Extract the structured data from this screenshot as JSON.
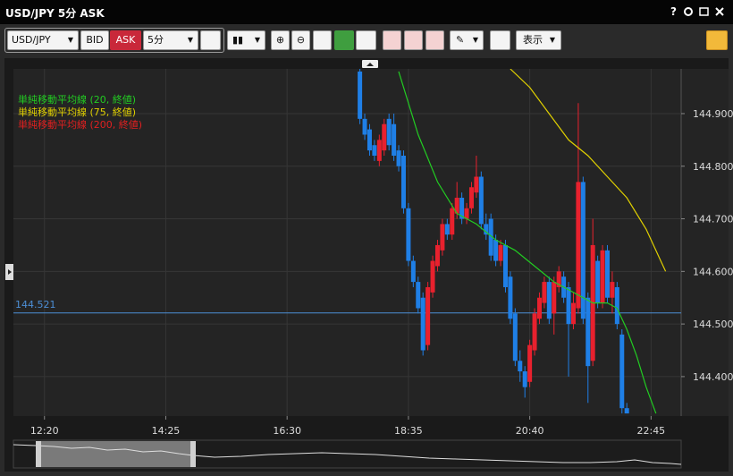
{
  "window": {
    "title": "USD/JPY 5分 ASK",
    "help": "?"
  },
  "toolbar": {
    "symbol": "USD/JPY",
    "bid": "BID",
    "ask": "ASK",
    "interval": "5分",
    "display": "表示"
  },
  "chart_data": {
    "type": "candlestick",
    "x": [
      "17:45",
      "17:50",
      "17:55",
      "18:00",
      "18:05",
      "18:10",
      "18:15",
      "18:20",
      "18:25",
      "18:30",
      "18:35",
      "18:40",
      "18:45",
      "18:50",
      "18:55",
      "19:00",
      "19:05",
      "19:10",
      "19:15",
      "19:20",
      "19:25",
      "19:30",
      "19:35",
      "19:40",
      "19:45",
      "19:50",
      "19:55",
      "20:00",
      "20:05",
      "20:10",
      "20:15",
      "20:20",
      "20:25",
      "20:30",
      "20:35",
      "20:40",
      "20:45",
      "20:50",
      "20:55",
      "21:00",
      "21:05",
      "21:10",
      "21:15",
      "21:20",
      "21:25",
      "21:30",
      "21:35",
      "21:40",
      "21:45",
      "21:50",
      "21:55",
      "22:00",
      "22:05",
      "22:10",
      "22:15",
      "22:20"
    ],
    "open": [
      144.98,
      144.89,
      144.87,
      144.84,
      144.81,
      144.83,
      144.89,
      144.88,
      144.83,
      144.82,
      144.72,
      144.62,
      144.58,
      144.55,
      144.46,
      144.56,
      144.61,
      144.64,
      144.69,
      144.67,
      144.71,
      144.74,
      144.7,
      144.72,
      144.75,
      144.78,
      144.69,
      144.7,
      144.66,
      144.62,
      144.65,
      144.59,
      144.52,
      144.43,
      144.41,
      144.39,
      144.45,
      144.51,
      144.54,
      144.58,
      144.52,
      144.57,
      144.59,
      144.57,
      144.5,
      144.53,
      144.77,
      144.55,
      144.43,
      144.62,
      144.54,
      144.64,
      144.55,
      144.57,
      144.48,
      144.34
    ],
    "high": [
      144.99,
      144.9,
      144.88,
      144.85,
      144.86,
      144.89,
      144.9,
      144.9,
      144.84,
      144.83,
      144.73,
      144.63,
      144.59,
      144.56,
      144.58,
      144.63,
      144.66,
      144.7,
      144.7,
      144.73,
      144.77,
      144.75,
      144.73,
      144.77,
      144.82,
      144.79,
      144.71,
      144.71,
      144.67,
      144.66,
      144.66,
      144.6,
      144.53,
      144.45,
      144.42,
      144.47,
      144.53,
      144.56,
      144.59,
      144.59,
      144.59,
      144.61,
      144.6,
      144.58,
      144.56,
      144.92,
      144.78,
      144.56,
      144.7,
      144.63,
      144.65,
      144.65,
      144.6,
      144.58,
      144.49,
      144.35
    ],
    "low": [
      144.88,
      144.85,
      144.82,
      144.81,
      144.8,
      144.82,
      144.83,
      144.81,
      144.79,
      144.71,
      144.61,
      144.57,
      144.52,
      144.44,
      144.45,
      144.55,
      144.6,
      144.63,
      144.66,
      144.66,
      144.7,
      144.69,
      144.69,
      144.71,
      144.74,
      144.68,
      144.66,
      144.62,
      144.61,
      144.61,
      144.56,
      144.5,
      144.42,
      144.39,
      144.36,
      144.38,
      144.44,
      144.5,
      144.53,
      144.5,
      144.48,
      144.56,
      144.54,
      144.4,
      144.49,
      144.52,
      144.5,
      144.35,
      144.42,
      144.53,
      144.53,
      144.54,
      144.52,
      144.49,
      144.33,
      144.33
    ],
    "close": [
      144.89,
      144.86,
      144.83,
      144.82,
      144.85,
      144.88,
      144.84,
      144.82,
      144.8,
      144.72,
      144.62,
      144.58,
      144.53,
      144.45,
      144.57,
      144.62,
      144.65,
      144.69,
      144.67,
      144.72,
      144.74,
      144.7,
      144.72,
      144.76,
      144.78,
      144.69,
      144.67,
      144.63,
      144.62,
      144.65,
      144.57,
      144.51,
      144.43,
      144.41,
      144.38,
      144.46,
      144.52,
      144.55,
      144.58,
      144.51,
      144.58,
      144.6,
      144.55,
      144.5,
      144.54,
      144.77,
      144.51,
      144.42,
      144.65,
      144.54,
      144.64,
      144.55,
      144.58,
      144.5,
      144.34,
      144.33
    ],
    "up_color": "#e8212e",
    "down_color": "#1f7fe6",
    "series": [
      {
        "name": "単純移動平均線 (20, 終値)",
        "color": "#22cc22",
        "x": [
          "18:25",
          "18:45",
          "19:05",
          "19:25",
          "19:45",
          "20:05",
          "20:25",
          "20:45",
          "21:05",
          "21:25",
          "21:45",
          "22:00",
          "22:10",
          "22:20",
          "22:30",
          "22:40",
          "22:50"
        ],
        "values": [
          144.98,
          144.86,
          144.77,
          144.71,
          144.69,
          144.66,
          144.64,
          144.61,
          144.58,
          144.56,
          144.54,
          144.54,
          144.53,
          144.49,
          144.44,
          144.38,
          144.33
        ]
      },
      {
        "name": "単純移動平均線 (75, 終値)",
        "color": "#e0d000",
        "x": [
          "20:20",
          "20:40",
          "21:00",
          "21:20",
          "21:40",
          "22:00",
          "22:20",
          "22:40",
          "22:55",
          "23:00"
        ],
        "values": [
          144.985,
          144.95,
          144.9,
          144.85,
          144.82,
          144.78,
          144.74,
          144.68,
          144.62,
          144.6
        ]
      },
      {
        "name": "単純移動平均線 (200, 終値)",
        "color": "#e02020",
        "x": [],
        "values": []
      }
    ],
    "current_price": 144.521,
    "current_price_color": "#4d8fd6",
    "xlim": [
      "11:48",
      "23:16"
    ],
    "xticks": [
      "12:20",
      "14:25",
      "16:30",
      "18:35",
      "20:40",
      "22:45"
    ],
    "ylim": [
      144.325,
      144.985
    ],
    "yticks": [
      {
        "value": 144.4,
        "label": "144.400"
      },
      {
        "value": 144.5,
        "label": "144.500"
      },
      {
        "value": 144.6,
        "label": "144.600"
      },
      {
        "value": 144.7,
        "label": "144.700"
      },
      {
        "value": 144.8,
        "label": "144.800"
      },
      {
        "value": 144.9,
        "label": "144.900"
      }
    ],
    "grid": true
  }
}
